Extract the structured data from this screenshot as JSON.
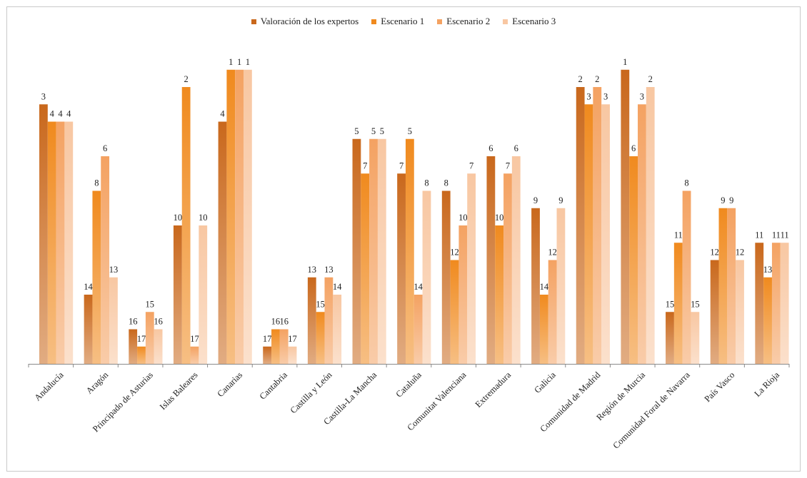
{
  "chart_data": {
    "type": "bar",
    "categories": [
      "Andalucía",
      "Aragón",
      "Principado de Asturias",
      "Islas Baleares",
      "Canarias",
      "Cantabria",
      "Castilla y León",
      "Castilla-La Mancha",
      "Cataluña",
      "Comunitat Valenciana",
      "Extremadura",
      "Galicia",
      "Comunidad de Madrid",
      "Región de Murcia",
      "Comunidad Foral de Navarra",
      "País Vasco",
      "La Rioja"
    ],
    "series": [
      {
        "name": "Valoración de los expertos",
        "color": "#c9681c",
        "values": [
          3,
          14,
          16,
          10,
          4,
          17,
          13,
          5,
          7,
          8,
          6,
          9,
          2,
          1,
          15,
          12,
          11
        ]
      },
      {
        "name": "Escenario 1",
        "color": "#f08a1e",
        "values": [
          4,
          8,
          17,
          2,
          1,
          16,
          15,
          7,
          5,
          12,
          10,
          14,
          3,
          6,
          11,
          9,
          13
        ]
      },
      {
        "name": "Escenario 2",
        "color": "#f4a262",
        "values": [
          4,
          6,
          15,
          17,
          1,
          16,
          13,
          5,
          14,
          10,
          7,
          12,
          2,
          3,
          8,
          9,
          11
        ]
      },
      {
        "name": "Escenario 3",
        "color": "#f8c7a2",
        "values": [
          4,
          13,
          16,
          10,
          1,
          17,
          14,
          5,
          8,
          7,
          6,
          9,
          3,
          2,
          15,
          12,
          11
        ]
      }
    ],
    "value_meaning": "rank (1 = tallest bar)",
    "legend_position": "top",
    "grid": false
  }
}
